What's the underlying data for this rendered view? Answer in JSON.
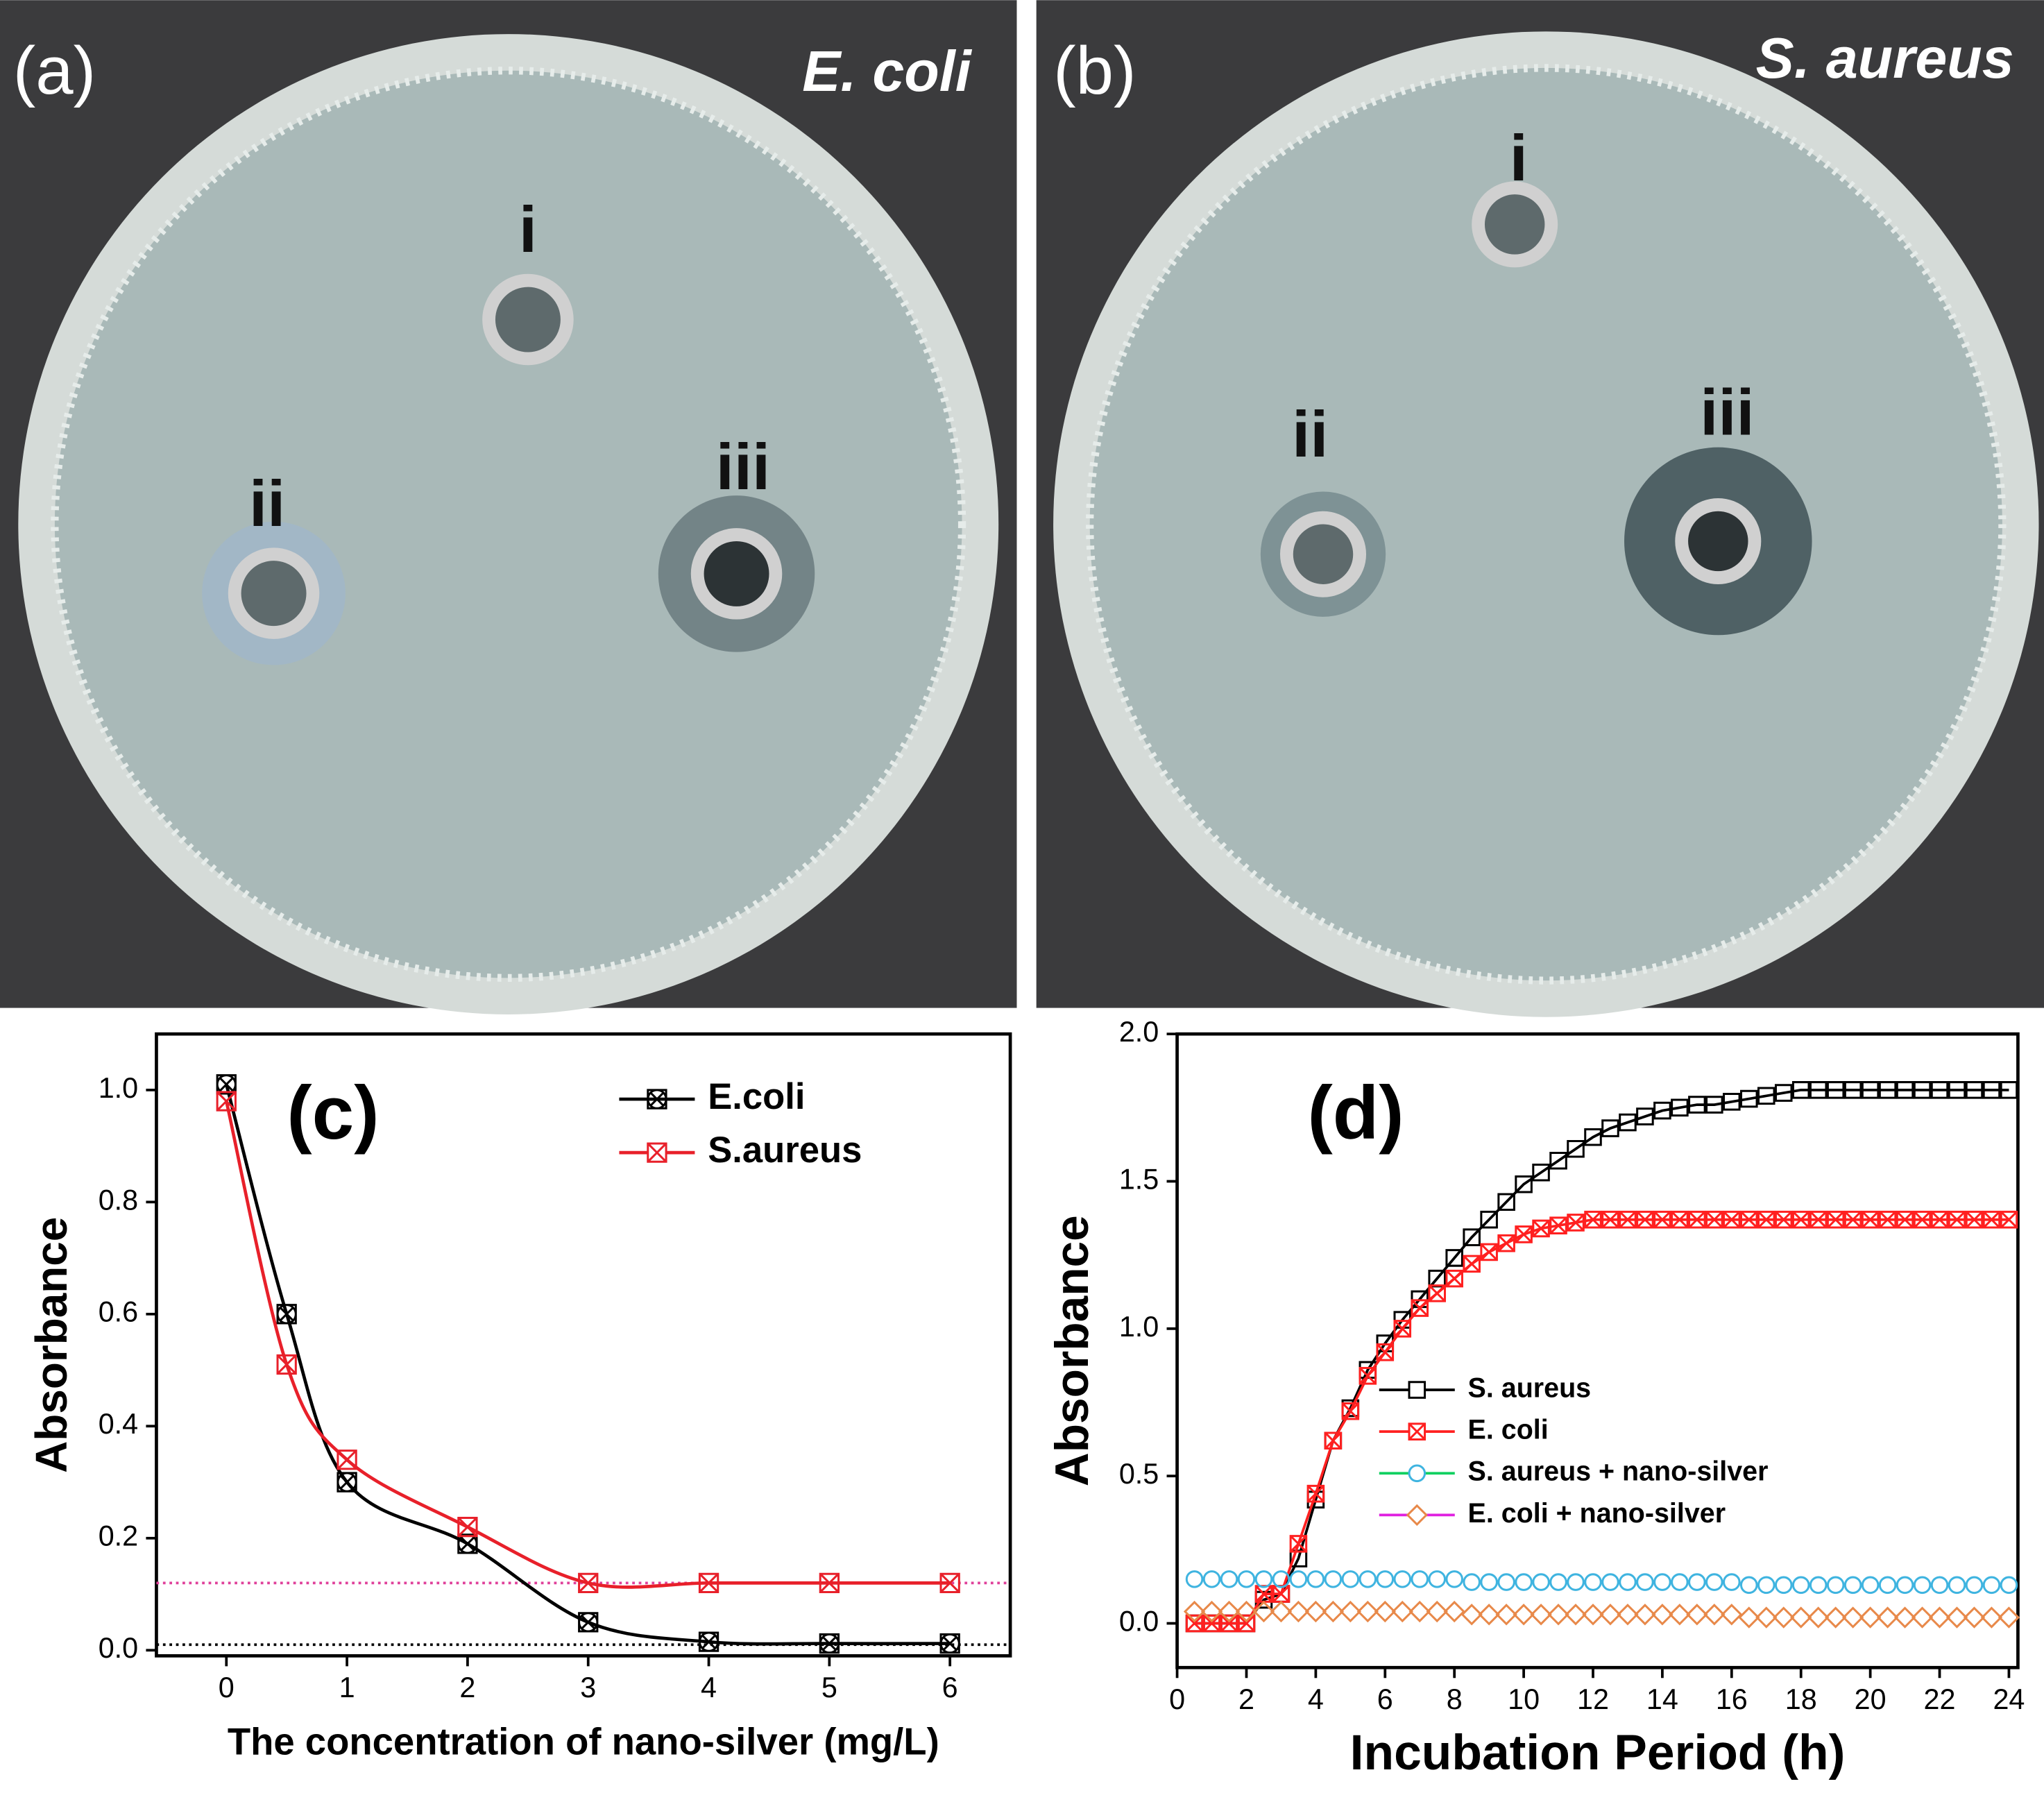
{
  "panels": [
    {
      "label": "(a)",
      "organism": "E. coli",
      "wells": [
        "i",
        "ii",
        "iii"
      ]
    },
    {
      "label": "(b)",
      "organism": "S. aureus",
      "wells": [
        "i",
        "ii",
        "iii"
      ]
    }
  ],
  "chart_data": [
    {
      "type": "line",
      "panel_label": "(c)",
      "xlabel": "The concentration of nano-silver (mg/L)",
      "ylabel": "Absorbance",
      "x": [
        0,
        0.5,
        1,
        2,
        3,
        4,
        5,
        6
      ],
      "series": [
        {
          "name": "E.coli",
          "color": "#000000",
          "marker": "circle-x",
          "values": [
            1.01,
            0.6,
            0.3,
            0.19,
            0.05,
            0.015,
            0.012,
            0.012
          ]
        },
        {
          "name": "S.aureus",
          "color": "#e8202a",
          "marker": "square-x",
          "values": [
            0.98,
            0.51,
            0.34,
            0.22,
            0.12,
            0.12,
            0.12,
            0.12
          ]
        }
      ],
      "reference_lines": [
        {
          "value": 0.12,
          "color": "#e0409a"
        },
        {
          "value": 0.01,
          "color": "#000000"
        }
      ],
      "curve": "smooth",
      "legend": "upper right",
      "xlim": [
        -0.58,
        6.5
      ],
      "ylim": [
        -0.01,
        1.1
      ],
      "xticks": [
        0,
        1,
        2,
        3,
        4,
        5,
        6
      ],
      "yticks": [
        {
          "value": 0,
          "label": "0.0"
        },
        0.2,
        0.4,
        0.6,
        0.8,
        {
          "value": 1,
          "label": "1.0"
        }
      ]
    },
    {
      "type": "line",
      "panel_label": "(d)",
      "xlabel": "Incubation Period (h)",
      "ylabel": "Absorbance",
      "x": [
        0.5,
        1,
        1.5,
        2,
        2.5,
        3,
        3.5,
        4,
        4.5,
        5,
        5.5,
        6,
        6.5,
        7,
        7.5,
        8,
        8.5,
        9,
        9.5,
        10,
        10.5,
        11,
        11.5,
        12,
        12.5,
        13,
        13.5,
        14,
        14.5,
        15,
        15.5,
        16,
        16.5,
        17,
        17.5,
        18,
        18.5,
        19,
        19.5,
        20,
        20.5,
        21,
        21.5,
        22,
        22.5,
        23,
        23.5,
        24
      ],
      "series": [
        {
          "name": "S. aureus",
          "color": "#000000",
          "marker": "square",
          "show_line": true,
          "values": [
            0,
            0,
            0,
            0,
            0.08,
            0.1,
            0.22,
            0.42,
            0.62,
            0.73,
            0.86,
            0.95,
            1.03,
            1.1,
            1.17,
            1.24,
            1.31,
            1.37,
            1.43,
            1.49,
            1.53,
            1.57,
            1.61,
            1.65,
            1.68,
            1.7,
            1.72,
            1.74,
            1.75,
            1.76,
            1.76,
            1.77,
            1.78,
            1.79,
            1.8,
            1.81,
            1.81,
            1.81,
            1.81,
            1.81,
            1.81,
            1.81,
            1.81,
            1.81,
            1.81,
            1.81,
            1.81,
            1.81
          ]
        },
        {
          "name": "E. coli",
          "color": "#ff2020",
          "marker": "square-x",
          "show_line": true,
          "values": [
            0,
            0,
            0,
            0,
            0.1,
            0.1,
            0.27,
            0.44,
            0.62,
            0.72,
            0.84,
            0.92,
            1.0,
            1.07,
            1.12,
            1.17,
            1.22,
            1.26,
            1.29,
            1.32,
            1.34,
            1.35,
            1.36,
            1.37,
            1.37,
            1.37,
            1.37,
            1.37,
            1.37,
            1.37,
            1.37,
            1.37,
            1.37,
            1.37,
            1.37,
            1.37,
            1.37,
            1.37,
            1.37,
            1.37,
            1.37,
            1.37,
            1.37,
            1.37,
            1.37,
            1.37,
            1.37,
            1.37
          ]
        },
        {
          "name": "S. aureus + nano-silver",
          "color": "#10d060",
          "marker_color": "#3fb4e0",
          "marker": "circle",
          "show_line": false,
          "values": [
            0.15,
            0.15,
            0.15,
            0.15,
            0.15,
            0.15,
            0.15,
            0.15,
            0.15,
            0.15,
            0.15,
            0.15,
            0.15,
            0.15,
            0.15,
            0.15,
            0.14,
            0.14,
            0.14,
            0.14,
            0.14,
            0.14,
            0.14,
            0.14,
            0.14,
            0.14,
            0.14,
            0.14,
            0.14,
            0.14,
            0.14,
            0.14,
            0.13,
            0.13,
            0.13,
            0.13,
            0.13,
            0.13,
            0.13,
            0.13,
            0.13,
            0.13,
            0.13,
            0.13,
            0.13,
            0.13,
            0.13,
            0.13
          ]
        },
        {
          "name": "E. coli + nano-silver",
          "color": "#e020e0",
          "marker_color": "#e8894a",
          "marker": "diamond",
          "show_line": false,
          "values": [
            0.04,
            0.04,
            0.04,
            0.04,
            0.04,
            0.04,
            0.04,
            0.04,
            0.04,
            0.04,
            0.04,
            0.04,
            0.04,
            0.04,
            0.04,
            0.04,
            0.03,
            0.03,
            0.03,
            0.03,
            0.03,
            0.03,
            0.03,
            0.03,
            0.03,
            0.03,
            0.03,
            0.03,
            0.03,
            0.03,
            0.03,
            0.03,
            0.02,
            0.02,
            0.02,
            0.02,
            0.02,
            0.02,
            0.02,
            0.02,
            0.02,
            0.02,
            0.02,
            0.02,
            0.02,
            0.02,
            0.02,
            0.02
          ]
        }
      ],
      "curve": "straight",
      "legend": "center right",
      "xlim": [
        0,
        24.26
      ],
      "ylim": [
        -0.15,
        2.0
      ],
      "xticks": [
        0,
        2,
        4,
        6,
        8,
        10,
        12,
        14,
        16,
        18,
        20,
        22,
        24
      ],
      "yticks": [
        {
          "value": 0,
          "label": "0.0"
        },
        0.5,
        {
          "value": 1,
          "label": "1.0"
        },
        1.5,
        {
          "value": 2,
          "label": "2.0"
        }
      ]
    }
  ]
}
